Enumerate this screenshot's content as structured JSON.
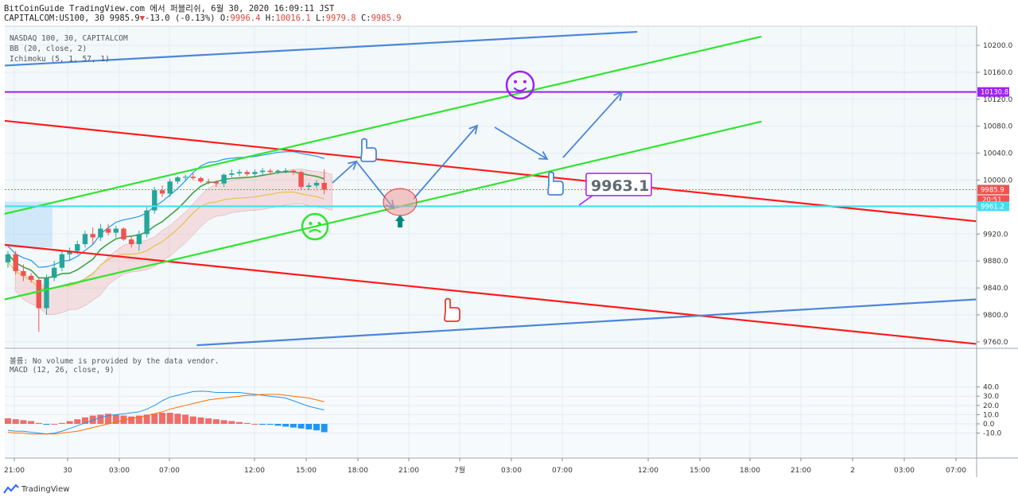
{
  "header": {
    "line1": "BitCoinGuide TradingView.com 에서 퍼블리쉬, 6월 30, 2020 16:09:11 JST",
    "symbol": "CAPITALCOM:US100, 30 9985.9",
    "change": "-13.0 (-0.13%)",
    "o_label": "O:",
    "o_value": "9996.4",
    "h_label": "H:",
    "h_value": "10016.1",
    "l_label": "L:",
    "l_value": "9979.8",
    "c_label": "C:",
    "c_value": "9985.9"
  },
  "legend": {
    "title": "NASDAQ 100, 30, CAPITALCOM",
    "bb": "BB (20, close, 2)",
    "ichimoku": "Ichimoku (5, 1, 57, 1)",
    "volume_note": "볼륨: No volume is provided by the data vendor.",
    "macd": "MACD (12, 26, close, 9)"
  },
  "colors": {
    "up": "#26a69a",
    "down": "#ef5350",
    "red_line": "#ff1a1a",
    "green_line": "#2ee62e",
    "blue_line": "#4a86d8",
    "purple_line": "#a020f0",
    "cyan_line": "#40e0f0",
    "macd_line": "#2196f3",
    "signal_line": "#ff6d00"
  },
  "chart_data": [
    {
      "type": "candlestick",
      "title": "NASDAQ 100, 30, CAPITALCOM",
      "x_ticks": [
        "21:00",
        "30",
        "03:00",
        "07:00",
        "12:00",
        "15:00",
        "18:00",
        "21:00",
        "7월",
        "03:00",
        "07:00",
        "12:00",
        "15:00",
        "18:00",
        "21:00",
        "2",
        "03:00",
        "07:00"
      ],
      "y_ticks": [
        10200.0,
        10160.0,
        10120.0,
        10080.0,
        10040.0,
        10000.0,
        9960.0,
        9920.0,
        9880.0,
        9840.0,
        9800.0,
        9760.0
      ],
      "ylim": [
        9755,
        10220
      ],
      "price_labels": {
        "last": "9985.9",
        "countdown": "20:51",
        "cyan_level": "9961.2",
        "purple_level": "10130.8"
      },
      "annotation": "9963.1",
      "candles": [
        [
          9878,
          9895,
          9870,
          9890
        ],
        [
          9890,
          9895,
          9860,
          9865
        ],
        [
          9865,
          9875,
          9850,
          9858
        ],
        [
          9858,
          9862,
          9848,
          9852
        ],
        [
          9852,
          9855,
          9775,
          9810
        ],
        [
          9810,
          9860,
          9800,
          9855
        ],
        [
          9855,
          9880,
          9850,
          9870
        ],
        [
          9870,
          9895,
          9865,
          9890
        ],
        [
          9890,
          9900,
          9880,
          9895
        ],
        [
          9895,
          9910,
          9890,
          9905
        ],
        [
          9905,
          9925,
          9900,
          9920
        ],
        [
          9920,
          9930,
          9905,
          9915
        ],
        [
          9915,
          9935,
          9910,
          9928
        ],
        [
          9928,
          9935,
          9918,
          9922
        ],
        [
          9922,
          9932,
          9915,
          9928
        ],
        [
          9928,
          9930,
          9910,
          9912
        ],
        [
          9912,
          9918,
          9900,
          9905
        ],
        [
          9905,
          9925,
          9895,
          9920
        ],
        [
          9920,
          9960,
          9915,
          9955
        ],
        [
          9955,
          9990,
          9950,
          9985
        ],
        [
          9985,
          9992,
          9975,
          9980
        ],
        [
          9980,
          10002,
          9975,
          9998
        ],
        [
          9998,
          10006,
          9994,
          10004
        ],
        [
          10004,
          10008,
          10000,
          10005
        ],
        [
          10005,
          10010,
          10000,
          10003
        ],
        [
          10003,
          10005,
          9996,
          9998
        ],
        [
          9998,
          10002,
          9994,
          9997
        ],
        [
          9997,
          10000,
          9990,
          9995
        ],
        [
          9995,
          10010,
          9990,
          10008
        ],
        [
          10008,
          10016,
          10004,
          10010
        ],
        [
          10010,
          10016,
          10006,
          10012
        ],
        [
          10012,
          10015,
          10006,
          10009
        ],
        [
          10009,
          10016,
          10005,
          10012
        ],
        [
          10012,
          10018,
          10008,
          10014
        ],
        [
          10014,
          10017,
          10008,
          10012
        ],
        [
          10012,
          10016,
          10009,
          10014
        ],
        [
          10014,
          10018,
          10010,
          10014
        ],
        [
          10014,
          10016,
          10008,
          10012
        ],
        [
          10012,
          10014,
          9986,
          9990
        ],
        [
          9990,
          9996,
          9985,
          9992
        ],
        [
          9992,
          10000,
          9988,
          9996
        ],
        [
          9996,
          10016,
          9979,
          9986
        ]
      ],
      "lines": [
        {
          "name": "",
          "color": "#ff1a1a",
          "from": [
            0,
            10088
          ],
          "to": [
            86,
            9939
          ]
        },
        {
          "name": "",
          "color": "#ff1a1a",
          "from": [
            0,
            9904
          ],
          "to": [
            86,
            9757
          ]
        },
        {
          "name": "",
          "color": "#2ee62e",
          "from": [
            0,
            9950
          ],
          "to": [
            67,
            10213
          ]
        },
        {
          "name": "",
          "color": "#2ee62e",
          "from": [
            0,
            9823
          ],
          "to": [
            67,
            10087
          ]
        },
        {
          "name": "",
          "color": "#4a86d8",
          "from": [
            0,
            10170
          ],
          "to": [
            56,
            10220
          ]
        },
        {
          "name": "",
          "color": "#4a86d8",
          "from": [
            17,
            9755
          ],
          "to": [
            86,
            9823
          ]
        }
      ]
    },
    {
      "type": "bar",
      "title": "MACD (12, 26, close, 9)",
      "y_ticks": [
        40.0,
        30.0,
        20.0,
        10.0,
        0.0,
        -10.0
      ],
      "ylim": [
        -17,
        41
      ],
      "histogram": [
        6,
        5,
        4,
        3,
        1,
        -1,
        0,
        1,
        3,
        5,
        7,
        9,
        10,
        11,
        10,
        9,
        8,
        9,
        10,
        11,
        12,
        12,
        11,
        10,
        8,
        7,
        6,
        5,
        4,
        3,
        2,
        1,
        0,
        -1,
        -1,
        -2,
        -3,
        -4,
        -5,
        -6,
        -7,
        -9
      ],
      "macd": [
        -7,
        -8,
        -8,
        -9,
        -10,
        -11,
        -10,
        -8,
        -5,
        -2,
        1,
        4,
        7,
        9,
        10,
        11,
        12,
        13,
        16,
        20,
        25,
        29,
        31,
        33,
        35,
        35.5,
        35,
        34,
        34,
        34,
        34,
        33,
        32,
        31,
        30,
        29,
        28,
        25,
        22,
        19,
        17,
        15
      ],
      "signal": [
        -9,
        -10,
        -10,
        -11,
        -11,
        -11,
        -11,
        -10,
        -9,
        -8,
        -6,
        -4,
        -2,
        0,
        2,
        4,
        6,
        7,
        9,
        11,
        13,
        16,
        18,
        20,
        22,
        24,
        26,
        27,
        28,
        29,
        30,
        31,
        31,
        32,
        32,
        32,
        31,
        30,
        29,
        28,
        26,
        24
      ]
    }
  ]
}
